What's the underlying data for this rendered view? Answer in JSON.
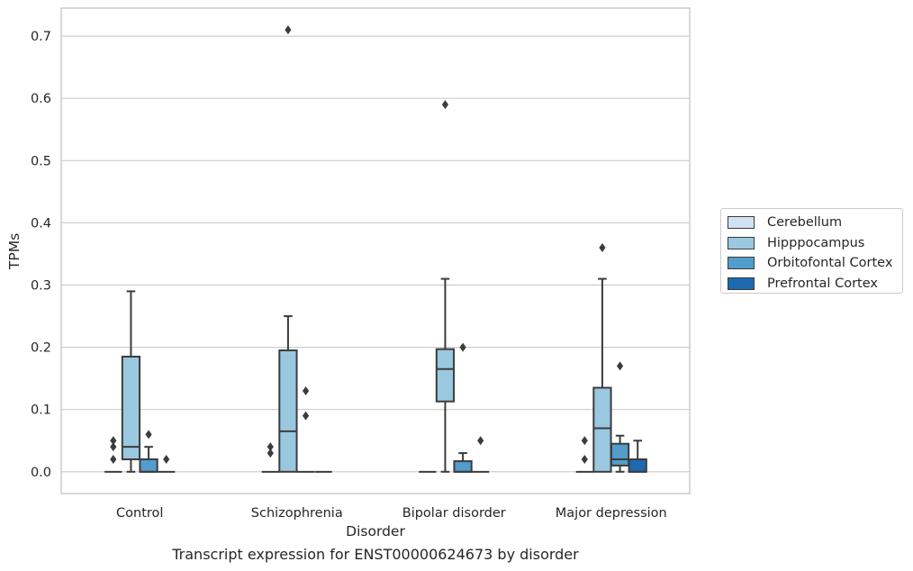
{
  "chart_data": {
    "type": "box",
    "xlabel": "Disorder",
    "ylabel": "TPMs",
    "caption": "Transcript expression for ENST00000624673 by disorder",
    "ylim": [
      -0.035,
      0.745
    ],
    "yticks": [
      "0.0",
      "0.1",
      "0.2",
      "0.3",
      "0.4",
      "0.5",
      "0.6",
      "0.7"
    ],
    "grid": "horizontal",
    "legend_position": "right",
    "categories": [
      "Control",
      "Schizophrenia",
      "Bipolar disorder",
      "Major depression"
    ],
    "series": [
      {
        "name": "Cerebellum",
        "color": "#d1e3f3",
        "boxes": [
          {
            "whislo": 0,
            "q1": 0,
            "med": 0,
            "q3": 0,
            "whishi": 0,
            "fliers": [
              0.02,
              0.04,
              0.05
            ]
          },
          {
            "whislo": 0,
            "q1": 0,
            "med": 0,
            "q3": 0,
            "whishi": 0,
            "fliers": [
              0.03,
              0.04
            ]
          },
          {
            "whislo": 0,
            "q1": 0,
            "med": 0,
            "q3": 0,
            "whishi": 0,
            "fliers": []
          },
          {
            "whislo": 0,
            "q1": 0,
            "med": 0,
            "q3": 0,
            "whishi": 0,
            "fliers": [
              0.02,
              0.05
            ]
          }
        ]
      },
      {
        "name": "Hipppocampus",
        "color": "#9ac8e0",
        "boxes": [
          {
            "whislo": 0,
            "q1": 0.02,
            "med": 0.04,
            "q3": 0.185,
            "whishi": 0.29,
            "fliers": []
          },
          {
            "whislo": 0,
            "q1": 0,
            "med": 0.065,
            "q3": 0.195,
            "whishi": 0.25,
            "fliers": [
              0.71
            ]
          },
          {
            "whislo": 0,
            "q1": 0.113,
            "med": 0.165,
            "q3": 0.197,
            "whishi": 0.31,
            "fliers": [
              0.59
            ]
          },
          {
            "whislo": 0,
            "q1": 0,
            "med": 0.07,
            "q3": 0.135,
            "whishi": 0.31,
            "fliers": [
              0.36
            ]
          }
        ]
      },
      {
        "name": "Orbitofontal Cortex",
        "color": "#529dcc",
        "boxes": [
          {
            "whislo": 0,
            "q1": 0,
            "med": 0,
            "q3": 0.02,
            "whishi": 0.04,
            "fliers": [
              0.06
            ]
          },
          {
            "whislo": 0,
            "q1": 0,
            "med": 0,
            "q3": 0,
            "whishi": 0,
            "fliers": [
              0.09,
              0.13
            ]
          },
          {
            "whislo": 0,
            "q1": 0,
            "med": 0,
            "q3": 0.017,
            "whishi": 0.03,
            "fliers": [
              0.2
            ]
          },
          {
            "whislo": 0,
            "q1": 0.01,
            "med": 0.02,
            "q3": 0.045,
            "whishi": 0.058,
            "fliers": [
              0.17
            ]
          }
        ]
      },
      {
        "name": "Prefrontal Cortex",
        "color": "#1c6aaf",
        "boxes": [
          {
            "whislo": 0,
            "q1": 0,
            "med": 0,
            "q3": 0,
            "whishi": 0,
            "fliers": [
              0.02
            ]
          },
          {
            "whislo": 0,
            "q1": 0,
            "med": 0,
            "q3": 0,
            "whishi": 0,
            "fliers": []
          },
          {
            "whislo": 0,
            "q1": 0,
            "med": 0,
            "q3": 0,
            "whishi": 0,
            "fliers": [
              0.05
            ]
          },
          {
            "whislo": 0,
            "q1": 0,
            "med": 0,
            "q3": 0.02,
            "whishi": 0.05,
            "fliers": []
          }
        ]
      }
    ]
  }
}
